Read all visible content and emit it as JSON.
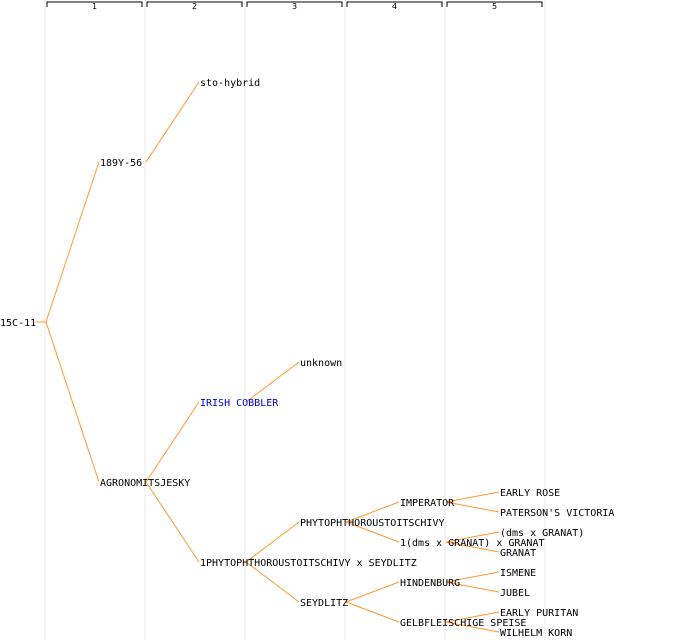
{
  "generations": [
    "1",
    "2",
    "3",
    "4",
    "5"
  ],
  "colors": {
    "edge": "#ff9933",
    "column_line": "#e8e8e8",
    "header": "#000000",
    "link": "#0000cc",
    "text": "#000000"
  },
  "nodes": [
    {
      "id": "root",
      "label": "15C-11",
      "gen": 0,
      "parent": null
    },
    {
      "id": "n1",
      "label": "189Y-56",
      "gen": 1,
      "parent": "root"
    },
    {
      "id": "n2",
      "label": "AGRONOMITSJESKY",
      "gen": 1,
      "parent": "root"
    },
    {
      "id": "n3",
      "label": "sto-hybrid",
      "gen": 2,
      "parent": "n1"
    },
    {
      "id": "n4",
      "label": "IRISH COBBLER",
      "gen": 2,
      "parent": "n2",
      "link": true
    },
    {
      "id": "n5",
      "label": "1PHYTOPHTHOROUSTOITSCHIVY x SEYDLITZ",
      "gen": 2,
      "parent": "n2"
    },
    {
      "id": "n6",
      "label": "unknown",
      "gen": 3,
      "parent": "n4"
    },
    {
      "id": "n7",
      "label": "PHYTOPHTHOROUSTOITSCHIVY",
      "gen": 3,
      "parent": "n5"
    },
    {
      "id": "n8",
      "label": "SEYDLITZ",
      "gen": 3,
      "parent": "n5"
    },
    {
      "id": "n9",
      "label": "IMPERATOR",
      "gen": 4,
      "parent": "n7"
    },
    {
      "id": "n10",
      "label": "1(dms x GRANAT) x GRANAT",
      "gen": 4,
      "parent": "n7"
    },
    {
      "id": "n11",
      "label": "HINDENBURG",
      "gen": 4,
      "parent": "n8"
    },
    {
      "id": "n12",
      "label": "GELBFLEISCHIGE SPEISE",
      "gen": 4,
      "parent": "n8"
    },
    {
      "id": "n13",
      "label": "EARLY ROSE",
      "gen": 5,
      "parent": "n9"
    },
    {
      "id": "n14",
      "label": "PATERSON'S VICTORIA",
      "gen": 5,
      "parent": "n9"
    },
    {
      "id": "n15",
      "label": "(dms x GRANAT)",
      "gen": 5,
      "parent": "n10"
    },
    {
      "id": "n16",
      "label": "GRANAT",
      "gen": 5,
      "parent": "n10"
    },
    {
      "id": "n17",
      "label": "ISMENE",
      "gen": 5,
      "parent": "n11"
    },
    {
      "id": "n18",
      "label": "JUBEL",
      "gen": 5,
      "parent": "n11"
    },
    {
      "id": "n19",
      "label": "EARLY PURITAN",
      "gen": 5,
      "parent": "n12"
    },
    {
      "id": "n20",
      "label": "WILHELM KORN",
      "gen": 5,
      "parent": "n12"
    }
  ]
}
